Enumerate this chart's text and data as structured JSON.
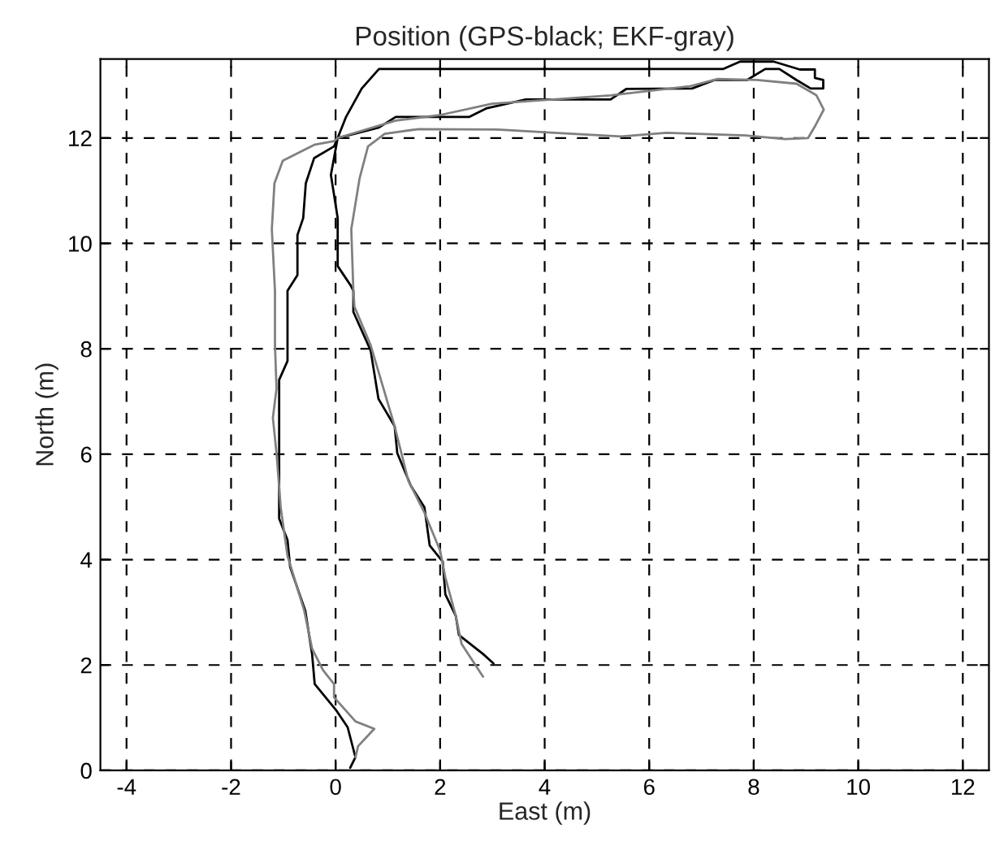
{
  "chart_data": {
    "type": "line",
    "title": "Position (GPS-black; EKF-gray)",
    "xlabel": "East (m)",
    "ylabel": "North (m)",
    "xlim": [
      -4.5,
      12.5
    ],
    "ylim": [
      0,
      13.5
    ],
    "xticks": [
      -4,
      -2,
      0,
      2,
      4,
      6,
      8,
      10,
      12
    ],
    "yticks": [
      0,
      2,
      4,
      6,
      8,
      10,
      12
    ],
    "grid": true,
    "line_style": "solid",
    "marker": "none",
    "series": [
      {
        "color": "#000000",
        "x": [
          0.28,
          0.38,
          0.23,
          0.02,
          -0.4,
          -0.45,
          -0.58,
          -0.87,
          -0.92,
          -1.08,
          -1.08,
          -0.92,
          -0.92,
          -0.73,
          -0.73,
          -0.62,
          -0.57,
          -0.41,
          -0.03,
          0.04,
          0.83,
          1.15,
          2.56,
          2.88,
          3.64,
          5.26,
          5.56,
          6.82,
          7.25,
          7.87,
          8.22,
          8.49,
          8.82,
          9.09,
          9.33,
          9.33,
          9.17,
          9.17,
          8.88,
          8.38,
          7.74,
          7.42,
          0.83,
          0.5,
          0.2,
          0.04,
          -0.09,
          0.04,
          0.04,
          0.29,
          0.34,
          0.34,
          0.67,
          0.82,
          1.13,
          1.18,
          1.44,
          1.7,
          1.8,
          2.05,
          2.1,
          2.3,
          2.36,
          2.82,
          3.02
        ],
        "values": [
          0.05,
          0.25,
          0.82,
          1.13,
          1.64,
          2.21,
          3.03,
          3.86,
          4.37,
          4.78,
          7.41,
          7.77,
          9.1,
          9.4,
          10.16,
          10.48,
          11.14,
          11.62,
          11.84,
          12.0,
          12.2,
          12.4,
          12.4,
          12.56,
          12.73,
          12.73,
          12.93,
          12.94,
          13.1,
          13.1,
          13.31,
          13.31,
          13.1,
          12.94,
          12.94,
          13.1,
          13.14,
          13.3,
          13.3,
          13.45,
          13.45,
          13.31,
          13.31,
          12.94,
          12.4,
          12.0,
          11.3,
          10.48,
          9.57,
          9.2,
          9.1,
          8.7,
          7.97,
          7.05,
          6.53,
          6.02,
          5.4,
          4.99,
          4.27,
          3.96,
          3.34,
          2.93,
          2.57,
          2.21,
          2.03
        ]
      },
      {
        "color": "#808080",
        "x": [
          0.38,
          0.43,
          0.74,
          0.38,
          -0.03,
          -0.03,
          -0.24,
          -0.45,
          -0.6,
          -0.92,
          -1.05,
          -1.13,
          -1.2,
          -1.13,
          -1.16,
          -1.16,
          -1.22,
          -1.17,
          -1.01,
          -0.41,
          -0.03,
          0.04,
          1.15,
          2.02,
          2.99,
          5.26,
          6.77,
          7.31,
          8.06,
          8.82,
          9.2,
          9.34,
          9.17,
          9.04,
          8.6,
          7.84,
          6.33,
          5.47,
          4.18,
          3.1,
          1.59,
          0.94,
          0.62,
          0.46,
          0.3,
          0.34,
          0.36,
          0.67,
          1.13,
          1.39,
          1.7,
          2.0,
          2.1,
          2.3,
          2.41,
          2.82
        ],
        "values": [
          0.25,
          0.46,
          0.79,
          0.93,
          1.39,
          1.64,
          1.9,
          2.31,
          3.03,
          4.07,
          4.99,
          6.02,
          6.69,
          7.25,
          8.07,
          9.1,
          10.27,
          11.14,
          11.57,
          11.87,
          11.94,
          12.0,
          12.33,
          12.44,
          12.65,
          12.81,
          12.98,
          13.12,
          13.1,
          13.03,
          12.81,
          12.54,
          12.22,
          12.0,
          11.98,
          12.05,
          12.1,
          12.03,
          12.1,
          12.16,
          12.17,
          12.08,
          11.84,
          11.24,
          10.27,
          9.1,
          8.8,
          8.07,
          6.53,
          5.5,
          4.89,
          4.17,
          3.66,
          2.93,
          2.4,
          1.78
        ]
      }
    ]
  }
}
